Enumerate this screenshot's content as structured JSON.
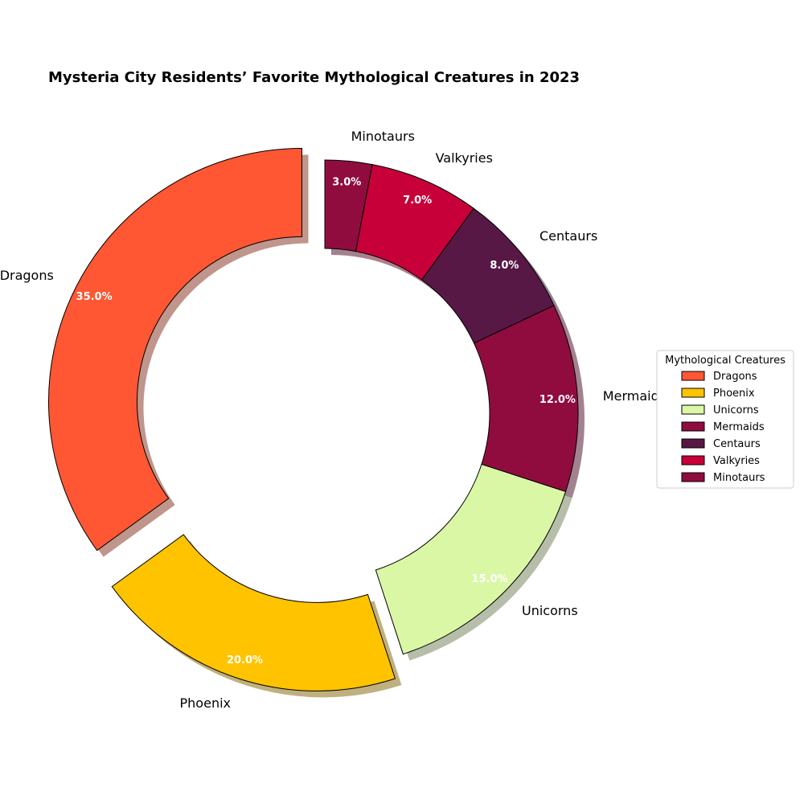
{
  "chart_data": {
    "type": "pie",
    "donut": true,
    "title": "Mysteria City Residents’ Favorite Mythological Creatures in 2023",
    "categories": [
      "Dragons",
      "Phoenix",
      "Unicorns",
      "Mermaids",
      "Centaurs",
      "Valkyries",
      "Minotaurs"
    ],
    "values": [
      35.0,
      20.0,
      15.0,
      12.0,
      8.0,
      7.0,
      3.0
    ],
    "value_labels": [
      "35.0%",
      "20.0%",
      "15.0%",
      "12.0%",
      "8.0%",
      "7.0%",
      "3.0%"
    ],
    "colors": [
      "#FF5733",
      "#FFC300",
      "#DAF7A6",
      "#900C3F",
      "#581845",
      "#C70039",
      "#900C3F"
    ],
    "exploded": [
      "Dragons",
      "Phoenix"
    ],
    "shadow": true,
    "start": "top",
    "direction": "counterclockwise",
    "legend": {
      "title": "Mythological Creatures",
      "placement": "right"
    }
  }
}
